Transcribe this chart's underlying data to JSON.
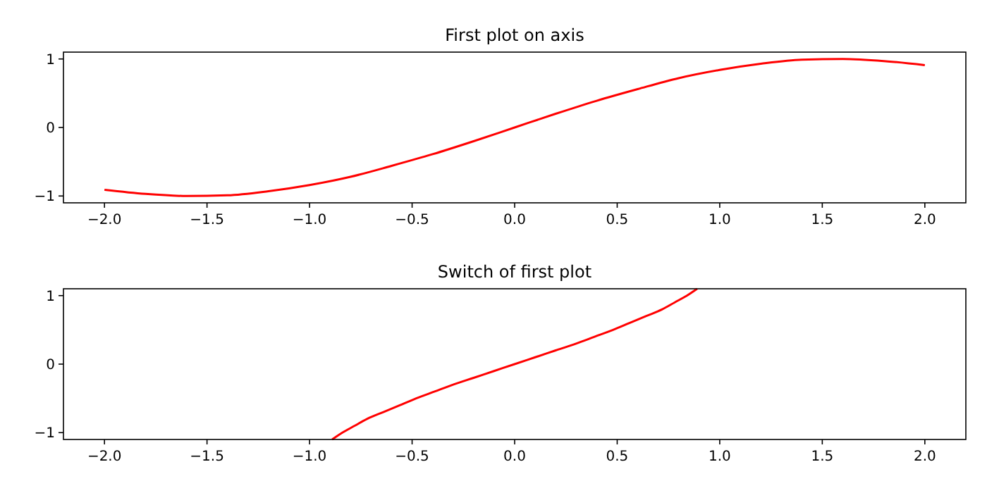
{
  "chart_data": [
    {
      "type": "line",
      "title": "First plot on axis",
      "x": [
        -2,
        -1.8,
        -1.6,
        -1.4,
        -1.2,
        -1,
        -0.8,
        -0.6,
        -0.4,
        -0.2,
        0,
        0.2,
        0.4,
        0.6,
        0.8,
        1,
        1.2,
        1.4,
        1.6,
        1.8,
        2
      ],
      "series": [
        {
          "color": "#ff0000",
          "values": [
            -0.91,
            -0.97,
            -1.0,
            -0.99,
            -0.93,
            -0.84,
            -0.72,
            -0.56,
            -0.39,
            -0.2,
            0,
            0.2,
            0.39,
            0.56,
            0.72,
            0.84,
            0.93,
            0.99,
            1.0,
            0.97,
            0.91
          ]
        }
      ],
      "xlim": [
        -2.2,
        2.2
      ],
      "ylim": [
        -1.1,
        1.1
      ],
      "xticks": [
        {
          "value": -2,
          "label": "−2.0"
        },
        {
          "value": -1.5,
          "label": "−1.5"
        },
        {
          "value": -1,
          "label": "−1.0"
        },
        {
          "value": -0.5,
          "label": "−0.5"
        },
        {
          "value": 0,
          "label": "0.0"
        },
        {
          "value": 0.5,
          "label": "0.5"
        },
        {
          "value": 1,
          "label": "1.0"
        },
        {
          "value": 1.5,
          "label": "1.5"
        },
        {
          "value": 2,
          "label": "2.0"
        }
      ],
      "yticks": [
        {
          "value": -1,
          "label": "−1"
        },
        {
          "value": 0,
          "label": "0"
        },
        {
          "value": 1,
          "label": "1"
        }
      ],
      "grid": false
    },
    {
      "type": "line",
      "title": "Switch of first plot",
      "x": [
        -0.89,
        -0.84,
        -0.78,
        -0.72,
        -0.64,
        -0.56,
        -0.48,
        -0.39,
        -0.3,
        -0.2,
        -0.1,
        0,
        0.1,
        0.2,
        0.3,
        0.39,
        0.48,
        0.56,
        0.64,
        0.72,
        0.78,
        0.84,
        0.89
      ],
      "series": [
        {
          "color": "#ff0000",
          "values": [
            -1.1,
            -1.0,
            -0.9,
            -0.8,
            -0.7,
            -0.6,
            -0.5,
            -0.4,
            -0.3,
            -0.2,
            -0.1,
            0,
            0.1,
            0.2,
            0.3,
            0.4,
            0.5,
            0.6,
            0.7,
            0.8,
            0.9,
            1.0,
            1.1
          ]
        }
      ],
      "xlim": [
        -2.2,
        2.2
      ],
      "ylim": [
        -1.1,
        1.1
      ],
      "xticks": [
        {
          "value": -2,
          "label": "−2.0"
        },
        {
          "value": -1.5,
          "label": "−1.5"
        },
        {
          "value": -1,
          "label": "−1.0"
        },
        {
          "value": -0.5,
          "label": "−0.5"
        },
        {
          "value": 0,
          "label": "0.0"
        },
        {
          "value": 0.5,
          "label": "0.5"
        },
        {
          "value": 1,
          "label": "1.0"
        },
        {
          "value": 1.5,
          "label": "1.5"
        },
        {
          "value": 2,
          "label": "2.0"
        }
      ],
      "yticks": [
        {
          "value": -1,
          "label": "−1"
        },
        {
          "value": 0,
          "label": "0"
        },
        {
          "value": 1,
          "label": "1"
        }
      ],
      "grid": false
    }
  ]
}
